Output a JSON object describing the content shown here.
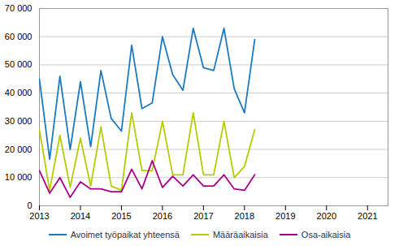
{
  "chart_data": {
    "type": "line",
    "title": "",
    "x": [
      2013,
      2013.25,
      2013.5,
      2013.75,
      2014,
      2014.25,
      2014.5,
      2014.75,
      2015,
      2015.25,
      2015.5,
      2015.75,
      2016,
      2016.25,
      2016.5,
      2016.75,
      2017,
      2017.25,
      2017.5,
      2017.75,
      2018,
      2018.25
    ],
    "series": [
      {
        "name": "Avoimet työpaikat yhteensä",
        "color": "#1c7abf",
        "values": [
          45000,
          16500,
          46000,
          20000,
          44000,
          21000,
          48000,
          31000,
          26500,
          57000,
          34500,
          36500,
          60000,
          46500,
          41000,
          63000,
          49000,
          48000,
          63000,
          41500,
          33000,
          59000
        ]
      },
      {
        "name": "Määräaikaisia",
        "color": "#b5cc00",
        "values": [
          27000,
          5500,
          25000,
          6500,
          24000,
          7000,
          28000,
          7000,
          5500,
          33000,
          12500,
          12500,
          30000,
          11000,
          11000,
          33000,
          11000,
          11000,
          30000,
          10000,
          14000,
          27000
        ]
      },
      {
        "name": "Osa-aikaisia",
        "color": "#aa0088",
        "values": [
          12500,
          4500,
          10000,
          3000,
          8500,
          6000,
          6000,
          5000,
          5000,
          13000,
          6000,
          16000,
          6500,
          10500,
          7000,
          11000,
          7000,
          7000,
          11000,
          6000,
          5500,
          11000
        ]
      }
    ],
    "xlim": [
      2013,
      2021.5
    ],
    "xticks": [
      2013,
      2014,
      2015,
      2016,
      2017,
      2018,
      2019,
      2020,
      2021
    ],
    "ylim": [
      0,
      70000
    ],
    "yticks": [
      0,
      {
        "value": 10000,
        "label": "10 000"
      },
      {
        "value": 20000,
        "label": "20 000"
      },
      {
        "value": 30000,
        "label": "30 000"
      },
      {
        "value": 40000,
        "label": "40 000"
      },
      {
        "value": 50000,
        "label": "50 000"
      },
      {
        "value": 60000,
        "label": "60 000"
      },
      {
        "value": 70000,
        "label": "70 000"
      }
    ],
    "grid": true,
    "legend": "bottom"
  }
}
